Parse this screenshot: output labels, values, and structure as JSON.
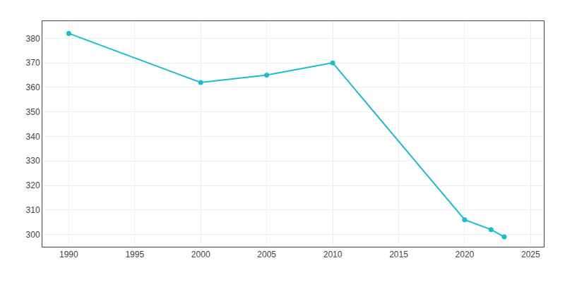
{
  "chart_data": {
    "type": "line",
    "x": [
      1990,
      2000,
      2005,
      2010,
      2020,
      2022,
      2023
    ],
    "values": [
      382,
      362,
      365,
      370,
      306,
      302,
      299
    ],
    "color": "#17becf",
    "marker": "circle",
    "line_style": "solid",
    "xlim": [
      1988,
      2026
    ],
    "xticks": [
      1990,
      1995,
      2000,
      2005,
      2010,
      2015,
      2020,
      2025
    ],
    "ylim": [
      295,
      387
    ],
    "yticks": [
      300,
      310,
      320,
      330,
      340,
      350,
      360,
      370,
      380
    ],
    "grid": true
  }
}
